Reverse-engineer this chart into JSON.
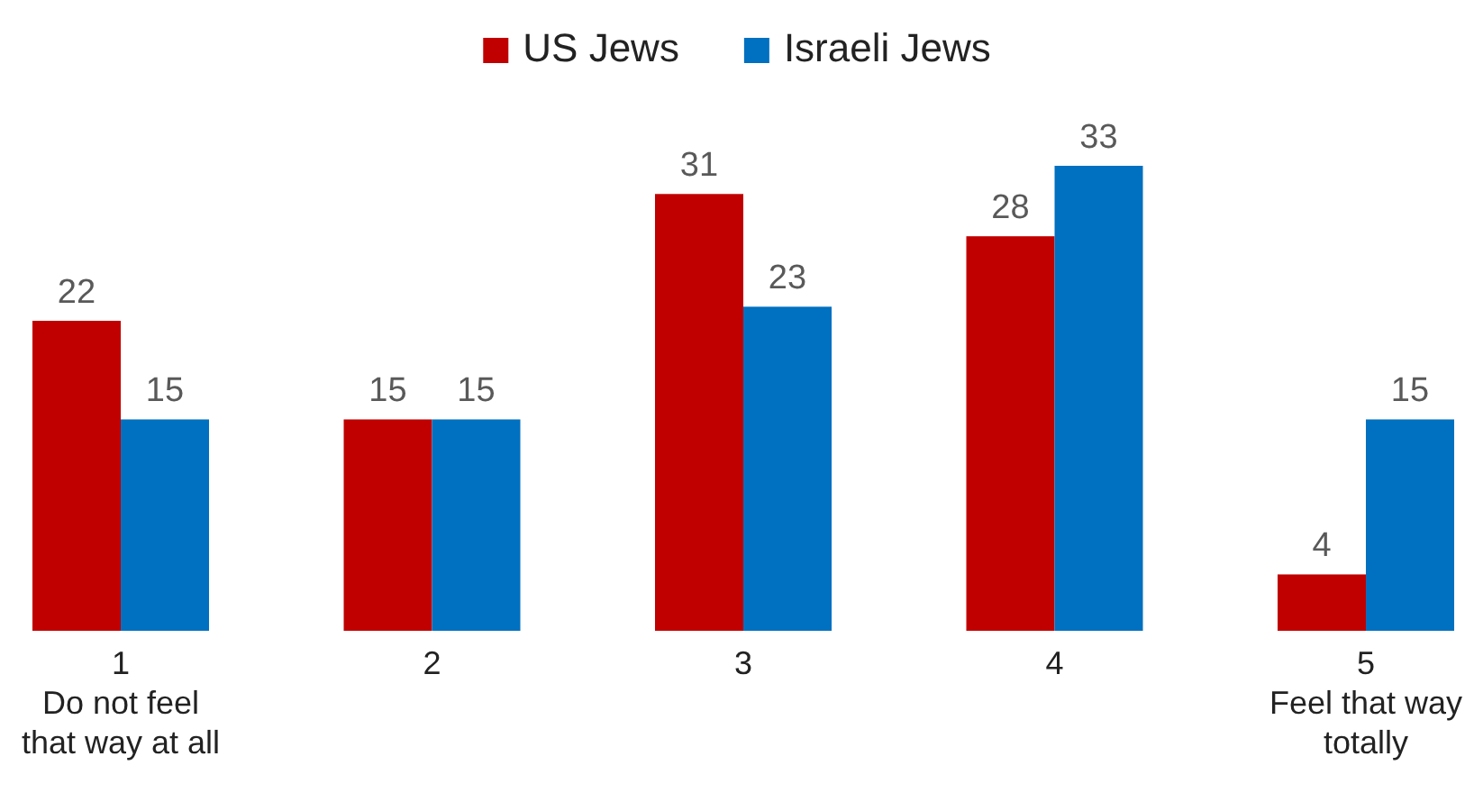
{
  "chart_data": {
    "type": "bar",
    "categories": [
      "1\nDo not feel\nthat way at all",
      "2",
      "3",
      "4",
      "5\nFeel that way\ntotally"
    ],
    "series": [
      {
        "name": "US Jews",
        "color": "#c00000",
        "values": [
          22,
          15,
          31,
          28,
          4
        ]
      },
      {
        "name": "Israeli Jews",
        "color": "#0070c0",
        "values": [
          15,
          15,
          23,
          33,
          15
        ]
      }
    ],
    "data_labels": true,
    "legend": "top"
  }
}
